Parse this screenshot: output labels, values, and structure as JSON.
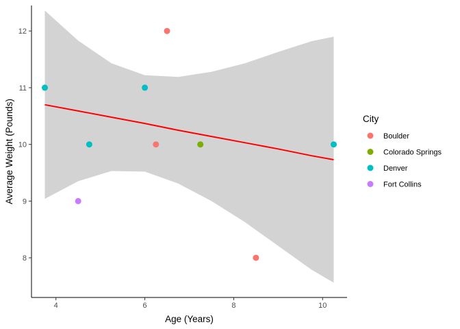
{
  "chart_data": {
    "type": "scatter",
    "title": "",
    "xlabel": "Age (Years)",
    "ylabel": "Average Weight (Pounds)",
    "xlim": [
      3.45,
      10.55
    ],
    "ylim": [
      7.3,
      12.45
    ],
    "x_ticks": [
      4,
      6,
      8,
      10
    ],
    "y_ticks": [
      8,
      9,
      10,
      11,
      12
    ],
    "grid": false,
    "legend": {
      "title": "City",
      "position": "right"
    },
    "series": [
      {
        "name": "Boulder",
        "color": "#F8766D",
        "points": [
          {
            "x": 6.5,
            "y": 12
          },
          {
            "x": 6.25,
            "y": 10
          },
          {
            "x": 8.5,
            "y": 8
          }
        ]
      },
      {
        "name": "Colorado Springs",
        "color": "#7CAE00",
        "points": [
          {
            "x": 7.25,
            "y": 10
          }
        ]
      },
      {
        "name": "Denver",
        "color": "#00BFC4",
        "points": [
          {
            "x": 3.75,
            "y": 11
          },
          {
            "x": 6.0,
            "y": 11
          },
          {
            "x": 4.75,
            "y": 10
          },
          {
            "x": 10.25,
            "y": 10
          }
        ]
      },
      {
        "name": "Fort Collins",
        "color": "#C77CFF",
        "points": [
          {
            "x": 4.5,
            "y": 9
          }
        ]
      }
    ],
    "regression": {
      "color": "#FF0000",
      "band_color": "#D3D3D3",
      "x": [
        3.75,
        4.5,
        5.25,
        6.0,
        6.75,
        7.5,
        8.25,
        9.0,
        9.75,
        10.25
      ],
      "fit": [
        10.7,
        10.59,
        10.48,
        10.37,
        10.25,
        10.14,
        10.03,
        9.92,
        9.8,
        9.73
      ],
      "upper": [
        12.36,
        11.83,
        11.43,
        11.22,
        11.19,
        11.28,
        11.43,
        11.63,
        11.82,
        11.9
      ],
      "lower": [
        9.04,
        9.35,
        9.53,
        9.52,
        9.31,
        9.0,
        8.63,
        8.21,
        7.79,
        7.56
      ]
    }
  }
}
